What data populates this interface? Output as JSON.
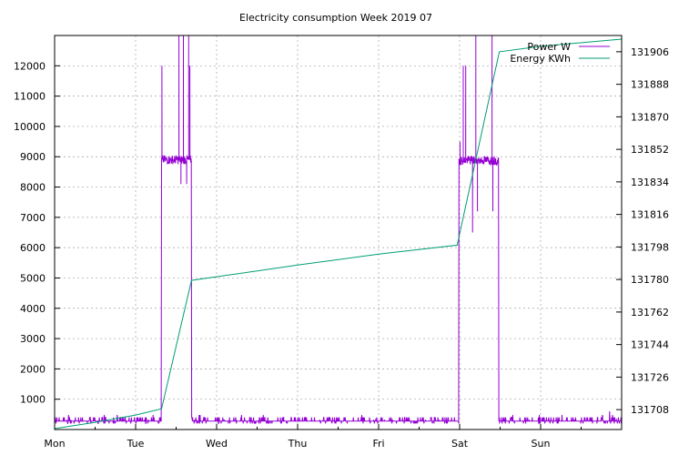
{
  "chart_data": {
    "type": "line",
    "title": "Electricity consumption Week 2019 07",
    "grid": true,
    "legend_position": "top-right",
    "x_categories": [
      "Mon",
      "Tue",
      "Wed",
      "Thu",
      "Fri",
      "Sat",
      "Sun"
    ],
    "x_range_days": [
      0,
      7
    ],
    "y_left": {
      "ticks": [
        1000,
        2000,
        3000,
        4000,
        5000,
        6000,
        7000,
        8000,
        9000,
        10000,
        11000,
        12000
      ],
      "range": [
        0,
        13000
      ]
    },
    "y_right": {
      "ticks": [
        131708,
        131726,
        131744,
        131762,
        131780,
        131798,
        131816,
        131834,
        131852,
        131870,
        131888,
        131906
      ],
      "range": [
        131697,
        131915
      ]
    },
    "series": [
      {
        "name": "Power W",
        "axis": "left",
        "color": "#9400d3",
        "baseline_w": 280,
        "high_periods": [
          {
            "start": 1.32,
            "end": 1.69,
            "level_w": 8900
          },
          {
            "start": 4.99,
            "end": 5.48,
            "level_w": 8880
          }
        ],
        "spikes": [
          {
            "x": 1.325,
            "y": 12000
          },
          {
            "x": 1.535,
            "y": 13000
          },
          {
            "x": 1.56,
            "y": 8100
          },
          {
            "x": 1.59,
            "y": 13000
          },
          {
            "x": 1.63,
            "y": 8100
          },
          {
            "x": 1.655,
            "y": 13000
          },
          {
            "x": 1.67,
            "y": 12000
          },
          {
            "x": 5.005,
            "y": 9500
          },
          {
            "x": 5.045,
            "y": 12000
          },
          {
            "x": 5.075,
            "y": 12000
          },
          {
            "x": 5.16,
            "y": 6500
          },
          {
            "x": 5.2,
            "y": 13000
          },
          {
            "x": 5.22,
            "y": 7200
          },
          {
            "x": 5.4,
            "y": 13000
          },
          {
            "x": 5.41,
            "y": 7200
          }
        ]
      },
      {
        "name": "Energy KWh",
        "axis": "right",
        "color": "#009e73",
        "points": [
          {
            "x": 0.0,
            "y": 131697.5
          },
          {
            "x": 0.5,
            "y": 131701.0
          },
          {
            "x": 1.0,
            "y": 131705.0
          },
          {
            "x": 1.32,
            "y": 131708.5
          },
          {
            "x": 1.69,
            "y": 131779.5
          },
          {
            "x": 3.0,
            "y": 131788.0
          },
          {
            "x": 4.0,
            "y": 131794.0
          },
          {
            "x": 4.97,
            "y": 131799.0
          },
          {
            "x": 5.49,
            "y": 131906.0
          },
          {
            "x": 6.0,
            "y": 131909.0
          },
          {
            "x": 7.0,
            "y": 131913.0
          }
        ]
      }
    ]
  }
}
